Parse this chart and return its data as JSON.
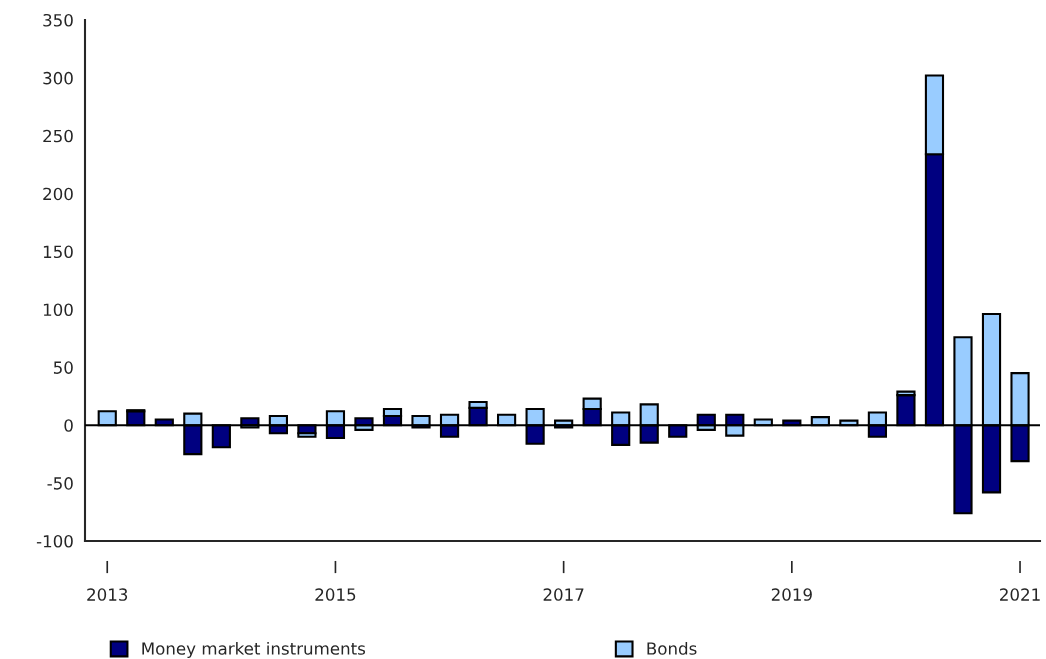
{
  "chart_data": {
    "type": "bar",
    "stacked": true,
    "categories": [
      "I\n2013",
      null,
      null,
      null,
      null,
      null,
      null,
      null,
      "I\n2015",
      null,
      null,
      null,
      null,
      null,
      null,
      null,
      "I\n2017",
      null,
      null,
      null,
      null,
      null,
      null,
      null,
      "I\n2019",
      null,
      null,
      null,
      null,
      null,
      null,
      null,
      "I\n2021"
    ],
    "series": [
      {
        "name": "Money market instruments",
        "color": "#000080",
        "values": [
          0,
          12,
          5,
          -25,
          -19,
          6,
          -7,
          -7,
          -11,
          6,
          8,
          -2,
          -10,
          15,
          null,
          -16,
          -2,
          14,
          -17,
          -15,
          -10,
          9,
          9,
          0,
          4,
          0,
          null,
          -10,
          26,
          234,
          -76,
          -58,
          -31
        ]
      },
      {
        "name": "Bonds",
        "color": "#99ccff",
        "values": [
          12,
          1,
          0,
          10,
          0,
          -2,
          8,
          -3,
          12,
          -4,
          6,
          8,
          9,
          5,
          9,
          14,
          4,
          9,
          11,
          18,
          0,
          -4,
          -9,
          5,
          null,
          7,
          4,
          11,
          3,
          68,
          76,
          96,
          45
        ]
      }
    ],
    "ylim": [
      -100,
      350
    ],
    "yticks": [
      -100,
      -50,
      0,
      50,
      100,
      150,
      200,
      250,
      300,
      350
    ],
    "ref_lines": [
      {
        "axis": "y",
        "value": 0
      }
    ],
    "grid": false,
    "legend": "bottom"
  }
}
